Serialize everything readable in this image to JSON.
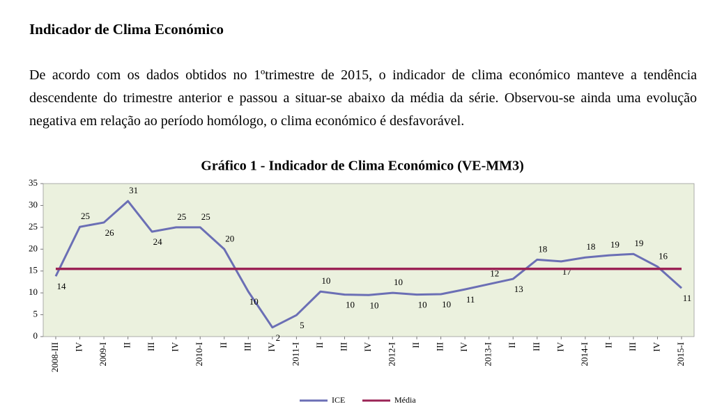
{
  "heading": "Indicador de Clima Económico",
  "paragraph": "De acordo com os dados obtidos no 1ºtrimestre de 2015, o indicador de clima económico manteve a tendência descendente do trimestre anterior e passou a situar-se abaixo da média da série. Observou-se ainda uma evolução negativa em relação ao período homólogo, o clima económico é desfavorável.",
  "chart_data": {
    "type": "line",
    "title": "Gráfico 1 - Indicador de Clima Económico (VE-MM3)",
    "categories": [
      "2008-III",
      "IV",
      "2009-I",
      "II",
      "III",
      "IV",
      "2010-I",
      "II",
      "III",
      "IV",
      "2011-I",
      "II",
      "III",
      "IV",
      "2012-I",
      "II",
      "III",
      "IV",
      "2013-I",
      "II",
      "III",
      "IV",
      "2014-I",
      "II",
      "III",
      "IV",
      "2015-I"
    ],
    "series": [
      {
        "name": "ICE",
        "color": "#6b6fb5",
        "values": [
          13.8,
          25.1,
          26.1,
          31,
          24,
          25,
          25,
          20,
          10.3,
          2.1,
          4.9,
          10.3,
          9.6,
          9.5,
          10,
          9.6,
          9.7,
          10.8,
          12,
          13.2,
          17.6,
          17.2,
          18.1,
          18.6,
          18.9,
          16,
          11.1
        ],
        "value_labels": [
          "14",
          "25",
          "26",
          "31",
          "24",
          "25",
          "25",
          "20",
          "10",
          "2",
          "5",
          "10",
          "10",
          "10",
          "10",
          "10",
          "10",
          "11",
          "12",
          "13",
          "18",
          "17",
          "18",
          "19",
          "19",
          "16",
          "11"
        ]
      },
      {
        "name": "Média",
        "color": "#9b2355",
        "values": [
          15.5,
          15.5,
          15.5,
          15.5,
          15.5,
          15.5,
          15.5,
          15.5,
          15.5,
          15.5,
          15.5,
          15.5,
          15.5,
          15.5,
          15.5,
          15.5,
          15.5,
          15.5,
          15.5,
          15.5,
          15.5,
          15.5,
          15.5,
          15.5,
          15.5,
          15.5,
          15.5
        ]
      }
    ],
    "ylim": [
      0,
      35
    ],
    "yticks": [
      0,
      5,
      10,
      15,
      20,
      25,
      30,
      35
    ],
    "grid": false,
    "legend": "bottom",
    "plot_background": "#ebf1de"
  }
}
